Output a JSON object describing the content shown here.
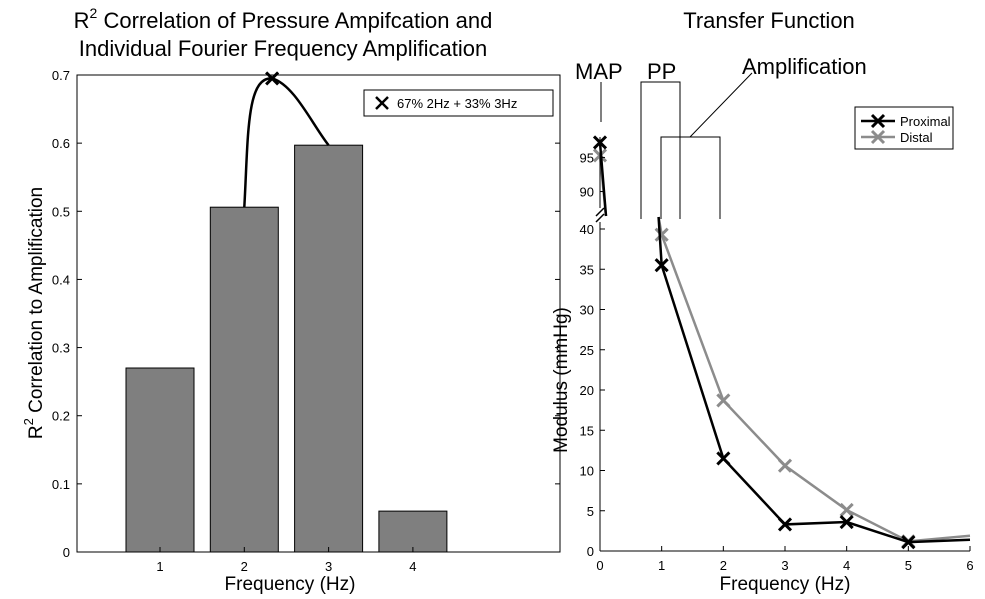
{
  "chart_data": [
    {
      "type": "bar",
      "title_line1_main": "R",
      "title_line1_sup": "2",
      "title_line1_rest": " Correlation of Pressure Ampifcation and",
      "title_line2": "Individual Fourier Frequency Amplification",
      "xlabel": "Frequency (Hz)",
      "ylabel_main": "R",
      "ylabel_sup": "2",
      "ylabel_rest": " Correlation to Amplification",
      "categories": [
        "1",
        "2",
        "3",
        "4"
      ],
      "values": [
        0.27,
        0.506,
        0.597,
        0.06
      ],
      "bar_color": "#7f7f7f",
      "ylim": [
        0,
        0.7
      ],
      "yticks": [
        "0",
        "0.1",
        "0.2",
        "0.3",
        "0.4",
        "0.5",
        "0.6",
        "0.7"
      ],
      "combined_marker": {
        "label": "67% 2Hz + 33% 3Hz",
        "x": 2.33,
        "y": 0.695
      },
      "legend": {
        "entries": [
          "67% 2Hz + 33% 3Hz"
        ],
        "position": "top-right"
      }
    },
    {
      "type": "line",
      "title": "Transfer Function",
      "xlabel": "Frequency (Hz)",
      "ylabel": "Modulus (mmHg)",
      "xlim": [
        0,
        6
      ],
      "xticks": [
        "0",
        "1",
        "2",
        "3",
        "4",
        "5",
        "6"
      ],
      "ylim_lower": [
        0,
        40
      ],
      "yticks_lower": [
        "0",
        "5",
        "10",
        "15",
        "20",
        "25",
        "30",
        "35",
        "40"
      ],
      "ylim_upper": [
        87,
        98
      ],
      "yticks_upper": [
        "90",
        "95"
      ],
      "axis_break": true,
      "series": [
        {
          "name": "Proximal",
          "color": "#000000",
          "x": [
            0,
            1,
            2,
            3,
            4,
            5,
            6
          ],
          "y": [
            97.2,
            35.5,
            11.5,
            3.3,
            3.6,
            1.1,
            1.4
          ]
        },
        {
          "name": "Distal",
          "color": "#8c8c8c",
          "x": [
            0,
            1,
            2,
            3,
            4,
            5,
            6
          ],
          "y": [
            95.3,
            39.3,
            18.7,
            10.6,
            5.1,
            1.2,
            1.9
          ]
        }
      ],
      "annotations": {
        "map": "MAP",
        "pp": "PP",
        "amplification": "Amplification"
      },
      "legend": {
        "position": "top-right"
      }
    }
  ]
}
